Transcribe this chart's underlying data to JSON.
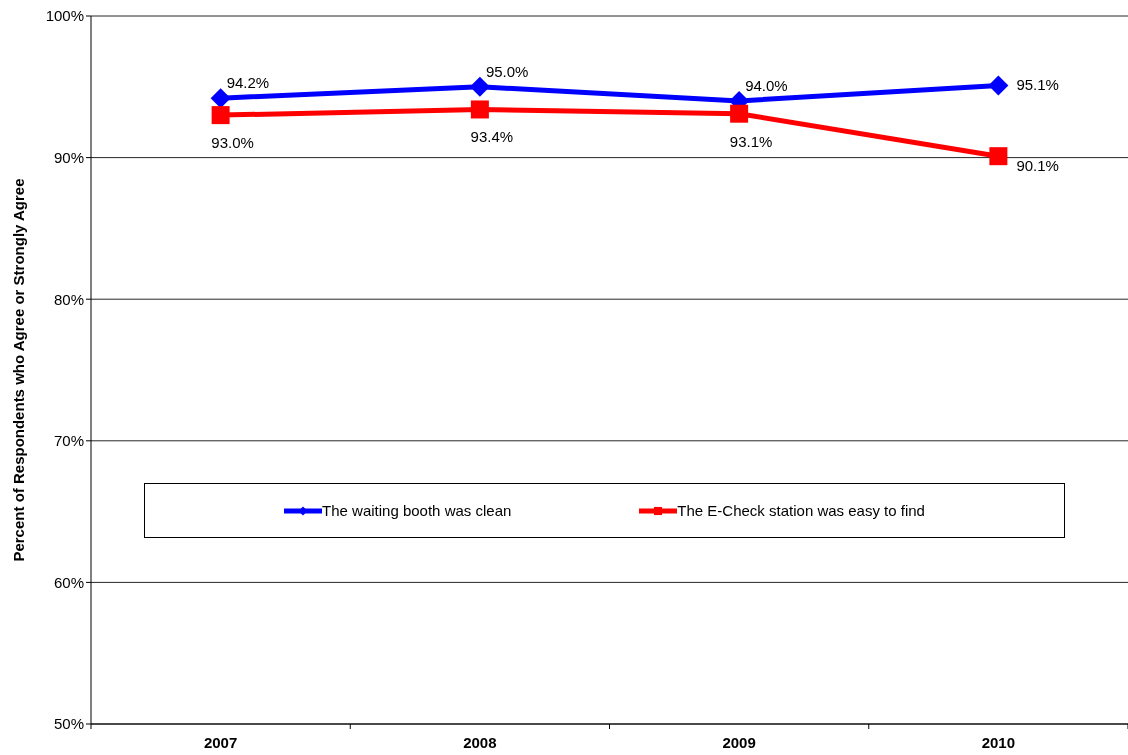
{
  "chart_data": {
    "type": "line",
    "ylabel": "Percent of Respondents who Agree or Strongly Agree",
    "categories": [
      "2007",
      "2008",
      "2009",
      "2010"
    ],
    "series": [
      {
        "name": "The waiting booth was clean",
        "color": "#0000ff",
        "marker": "diamond",
        "values": [
          94.2,
          95.0,
          94.0,
          95.1
        ],
        "value_labels": [
          "94.2%",
          "95.0%",
          "94.0%",
          "95.1%"
        ]
      },
      {
        "name": "The E-Check station was easy to find",
        "color": "#ff0000",
        "marker": "square",
        "values": [
          93.0,
          93.4,
          93.1,
          90.1
        ],
        "value_labels": [
          "93.0%",
          "93.4%",
          "93.1%",
          "90.1%"
        ]
      }
    ],
    "ylim": [
      50,
      100
    ],
    "yticks": [
      {
        "value": 50,
        "label": "50%"
      },
      {
        "value": 60,
        "label": "60%"
      },
      {
        "value": 70,
        "label": "70%"
      },
      {
        "value": 80,
        "label": "80%"
      },
      {
        "value": 90,
        "label": "90%"
      },
      {
        "value": 100,
        "label": "100%"
      }
    ],
    "grid": "y",
    "legend": "center",
    "line_style": "solid"
  }
}
